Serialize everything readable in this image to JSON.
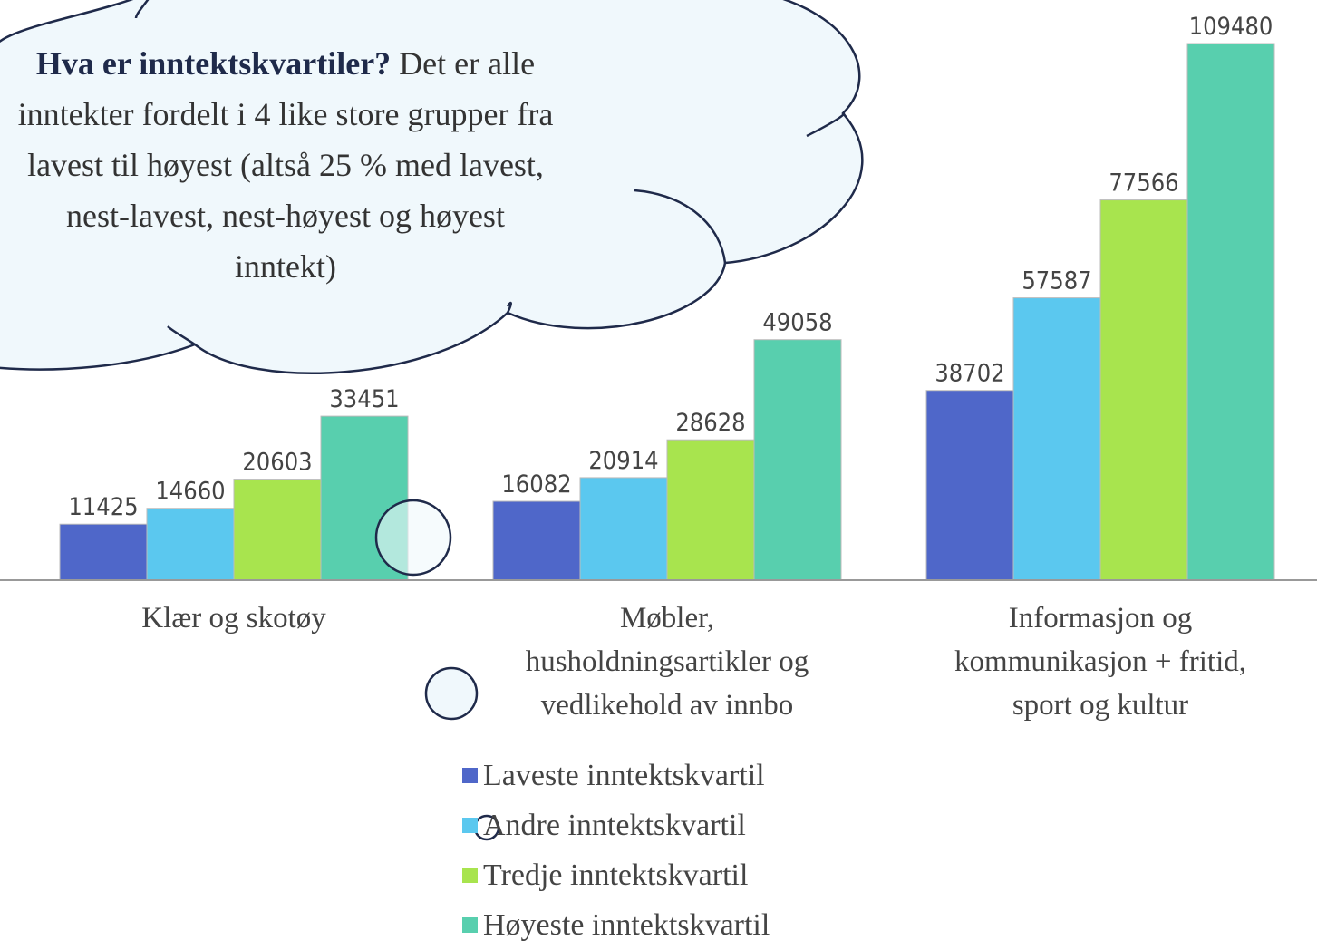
{
  "chart_data": {
    "type": "bar",
    "categories": [
      "Klær og skotøy",
      "Møbler, husholdningsartikler og vedlikehold av innbo",
      "Informasjon og kommunikasjon + fritid, sport og kultur"
    ],
    "series": [
      {
        "name": "Laveste inntektskvartil",
        "color": "#4f67c9",
        "values": [
          11425,
          16082,
          38702
        ]
      },
      {
        "name": "Andre inntektskvartil",
        "color": "#5bc8ef",
        "values": [
          14660,
          20914,
          57587
        ]
      },
      {
        "name": "Tredje inntektskvartil",
        "color": "#a8e44e",
        "values": [
          20603,
          28628,
          77566
        ]
      },
      {
        "name": "Høyeste inntektskvartil",
        "color": "#58cfae",
        "values": [
          33451,
          49058,
          109480
        ]
      }
    ],
    "legend": "bottom"
  },
  "annotation": {
    "title": "Hva er inntektskvartiler?",
    "lines": [
      "Det er alle",
      "inntekter fordelt i 4 like store grupper fra",
      "lavest til høyest (altså 25 % med lavest,",
      "nest-lavest, nest-høyest og høyest",
      "inntekt)"
    ]
  }
}
